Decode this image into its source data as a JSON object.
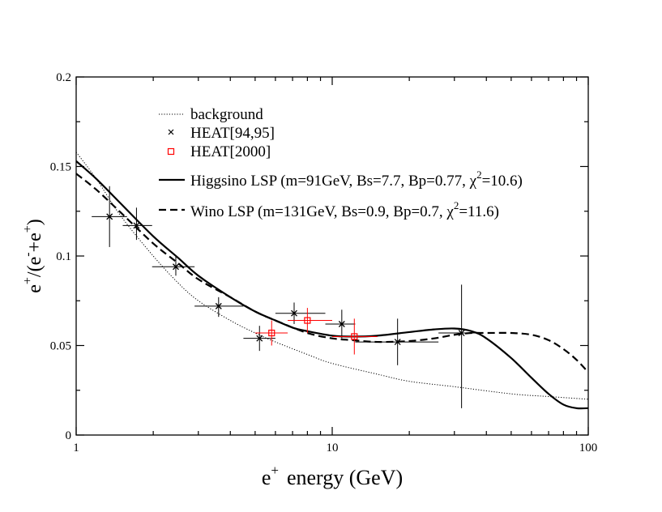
{
  "chart_data": {
    "type": "scatter",
    "xscale": "log",
    "xlim": [
      1,
      100
    ],
    "ylim": [
      0,
      0.2
    ],
    "xlabel": {
      "base": "e",
      "sup": "+",
      "rest": "energy (GeV)"
    },
    "ylabel": {
      "p1": "e",
      "s1": "+",
      "p2": "/(e",
      "s2": "-",
      "p3": "+e",
      "s3": "+",
      "p4": ")"
    },
    "x_ticks": [
      {
        "value": 1,
        "label": "1"
      },
      {
        "value": 10,
        "label": "10"
      },
      {
        "value": 100,
        "label": "100"
      }
    ],
    "y_ticks": [
      {
        "value": 0,
        "label": "0"
      },
      {
        "value": 0.05,
        "label": "0.05"
      },
      {
        "value": 0.1,
        "label": "0.1"
      },
      {
        "value": 0.15,
        "label": "0.15"
      },
      {
        "value": 0.2,
        "label": "0.2"
      }
    ],
    "legend": [
      {
        "style": "dotted",
        "label": "background"
      },
      {
        "style": "cross",
        "label": "HEAT[94,95]"
      },
      {
        "style": "square",
        "label": "HEAT[2000]"
      },
      {
        "style": "solid",
        "label": "Higgsino LSP (m=91GeV, Bs=7.7, Bp=0.77, χ",
        "sup": "2",
        "tail": "=10.6)"
      },
      {
        "style": "dashed",
        "label": "Wino LSP (m=131GeV, Bs=0.9, Bp=0.7, χ",
        "sup": "2",
        "tail": "=11.6)"
      }
    ],
    "series": [
      {
        "name": "background",
        "style": "dotted",
        "color": "#000000",
        "x": [
          1,
          1.2,
          1.5,
          2,
          2.5,
          3,
          4,
          5,
          6,
          8,
          10,
          15,
          20,
          30,
          50,
          70,
          100
        ],
        "y": [
          0.158,
          0.143,
          0.122,
          0.1,
          0.085,
          0.075,
          0.064,
          0.057,
          0.052,
          0.045,
          0.04,
          0.034,
          0.03,
          0.027,
          0.023,
          0.0215,
          0.02
        ]
      },
      {
        "name": "Higgsino LSP",
        "style": "solid",
        "color": "#000000",
        "x": [
          1,
          1.2,
          1.5,
          2,
          2.5,
          3,
          4,
          5,
          6,
          7,
          8,
          10,
          12,
          15,
          20,
          25,
          30,
          35,
          40,
          50,
          60,
          70,
          80,
          90,
          100
        ],
        "y": [
          0.153,
          0.143,
          0.129,
          0.111,
          0.099,
          0.089,
          0.077,
          0.069,
          0.064,
          0.06,
          0.058,
          0.0555,
          0.055,
          0.0555,
          0.0575,
          0.059,
          0.0595,
          0.058,
          0.054,
          0.043,
          0.032,
          0.023,
          0.017,
          0.015,
          0.015
        ]
      },
      {
        "name": "Wino LSP",
        "style": "dashed",
        "color": "#000000",
        "x": [
          1,
          1.2,
          1.5,
          2,
          2.5,
          3,
          4,
          5,
          6,
          8,
          10,
          12,
          15,
          20,
          25,
          30,
          35,
          40,
          50,
          60,
          70,
          80,
          90,
          100
        ],
        "y": [
          0.146,
          0.137,
          0.124,
          0.107,
          0.096,
          0.087,
          0.077,
          0.069,
          0.064,
          0.057,
          0.054,
          0.053,
          0.052,
          0.0525,
          0.054,
          0.056,
          0.057,
          0.057,
          0.057,
          0.056,
          0.053,
          0.048,
          0.042,
          0.035
        ]
      }
    ],
    "points": [
      {
        "name": "HEAT[94,95]",
        "marker": "x",
        "color": "#000000",
        "data": [
          {
            "x": 1.35,
            "y": 0.122,
            "xlo": 1.15,
            "xhi": 1.58,
            "ylo": 0.105,
            "yhi": 0.139
          },
          {
            "x": 1.72,
            "y": 0.117,
            "xlo": 1.52,
            "xhi": 1.98,
            "ylo": 0.109,
            "yhi": 0.127
          },
          {
            "x": 2.45,
            "y": 0.094,
            "xlo": 1.98,
            "xhi": 2.9,
            "ylo": 0.089,
            "yhi": 0.1
          },
          {
            "x": 3.6,
            "y": 0.072,
            "xlo": 2.9,
            "xhi": 4.5,
            "ylo": 0.066,
            "yhi": 0.077
          },
          {
            "x": 5.2,
            "y": 0.054,
            "xlo": 4.5,
            "xhi": 6.0,
            "ylo": 0.047,
            "yhi": 0.061
          },
          {
            "x": 7.1,
            "y": 0.068,
            "xlo": 6.0,
            "xhi": 9.4,
            "ylo": 0.062,
            "yhi": 0.074
          },
          {
            "x": 10.9,
            "y": 0.062,
            "xlo": 9.4,
            "xhi": 12.3,
            "ylo": 0.054,
            "yhi": 0.07
          },
          {
            "x": 18.0,
            "y": 0.052,
            "xlo": 12.3,
            "xhi": 26,
            "ylo": 0.039,
            "yhi": 0.065
          },
          {
            "x": 32,
            "y": 0.057,
            "xlo": 26,
            "xhi": 38,
            "ylo": 0.015,
            "yhi": 0.084
          }
        ]
      },
      {
        "name": "HEAT[2000]",
        "marker": "square",
        "color": "#ff0000",
        "data": [
          {
            "x": 5.8,
            "y": 0.057,
            "xlo": 5.0,
            "xhi": 6.7,
            "ylo": 0.05,
            "yhi": 0.064
          },
          {
            "x": 8.0,
            "y": 0.064,
            "xlo": 6.7,
            "xhi": 10.0,
            "ylo": 0.057,
            "yhi": 0.071
          },
          {
            "x": 12.2,
            "y": 0.055,
            "xlo": 10.0,
            "xhi": 15.0,
            "ylo": 0.045,
            "yhi": 0.065
          }
        ]
      }
    ]
  }
}
